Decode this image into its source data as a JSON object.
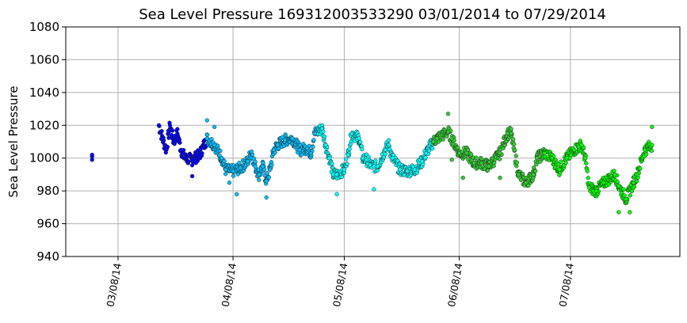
{
  "chart_data": {
    "type": "scatter",
    "title": "Sea Level Pressure 169312003533290  03/01/2014 to 07/29/2014",
    "xlabel": "",
    "ylabel": "Sea Level Pressure",
    "ylim": [
      940,
      1080
    ],
    "yticks": [
      940,
      960,
      980,
      1000,
      1020,
      1040,
      1060,
      1080
    ],
    "x_unit": "days since 03/01/2014",
    "xlim": [
      -7.1,
      158.5
    ],
    "xticks": [
      {
        "day": 7,
        "label": "03/08/14"
      },
      {
        "day": 38,
        "label": "04/08/14"
      },
      {
        "day": 68,
        "label": "05/08/14"
      },
      {
        "day": 99,
        "label": "06/08/14"
      },
      {
        "day": 129,
        "label": "07/08/14"
      }
    ],
    "grid": true,
    "legend": "none",
    "month_colors": [
      {
        "month": "March",
        "from_day": 0,
        "color": "#0000ff"
      },
      {
        "month": "April",
        "from_day": 31,
        "color": "#00bfff"
      },
      {
        "month": "May",
        "from_day": 61,
        "color": "#00ffff"
      },
      {
        "month": "June",
        "from_day": 92,
        "color": "#32cd32"
      },
      {
        "month": "July",
        "from_day": 122,
        "color": "#00ff00"
      }
    ],
    "isolated_points": [
      [
        0,
        999
      ],
      [
        0,
        1001
      ],
      [
        0,
        1002
      ]
    ],
    "series": [
      [
        18,
        1020
      ],
      [
        19,
        1012
      ],
      [
        20,
        1005
      ],
      [
        21,
        1020
      ],
      [
        22,
        1010
      ],
      [
        23,
        1015
      ],
      [
        24,
        1005
      ],
      [
        25,
        1000
      ],
      [
        27,
        999
      ],
      [
        29,
        1002
      ],
      [
        31,
        1012
      ],
      [
        33,
        1008
      ],
      [
        35,
        1000
      ],
      [
        36,
        993
      ],
      [
        38,
        992
      ],
      [
        40,
        994
      ],
      [
        42,
        998
      ],
      [
        43,
        1004
      ],
      [
        44,
        995
      ],
      [
        45,
        990
      ],
      [
        46,
        995
      ],
      [
        47,
        986
      ],
      [
        48,
        993
      ],
      [
        49,
        1005
      ],
      [
        50,
        1008
      ],
      [
        52,
        1011
      ],
      [
        54,
        1012
      ],
      [
        56,
        1005
      ],
      [
        58,
        1006
      ],
      [
        59,
        1003
      ],
      [
        60,
        1015
      ],
      [
        62,
        1018
      ],
      [
        63,
        1008
      ],
      [
        64,
        1000
      ],
      [
        65,
        990
      ],
      [
        66,
        990
      ],
      [
        68,
        993
      ],
      [
        69,
        1002
      ],
      [
        70,
        1015
      ],
      [
        72,
        1012
      ],
      [
        73,
        1000
      ],
      [
        74,
        999
      ],
      [
        75,
        996
      ],
      [
        76,
        995
      ],
      [
        77,
        995
      ],
      [
        79,
        1005
      ],
      [
        80,
        1008
      ],
      [
        81,
        1000
      ],
      [
        83,
        993
      ],
      [
        85,
        992
      ],
      [
        87,
        993
      ],
      [
        89,
        998
      ],
      [
        90,
        1003
      ],
      [
        92,
        1010
      ],
      [
        93,
        1012
      ],
      [
        96,
        1016
      ],
      [
        97,
        1012
      ],
      [
        99,
        1003
      ],
      [
        101,
        1003
      ],
      [
        103,
        997
      ],
      [
        105,
        997
      ],
      [
        107,
        995
      ],
      [
        110,
        1003
      ],
      [
        112,
        1015
      ],
      [
        113,
        1015
      ],
      [
        115,
        990
      ],
      [
        117,
        985
      ],
      [
        119,
        990
      ],
      [
        120,
        1000
      ],
      [
        122,
        1003
      ],
      [
        124,
        1000
      ],
      [
        126,
        993
      ],
      [
        128,
        1000
      ],
      [
        130,
        1005
      ],
      [
        132,
        1008
      ],
      [
        133,
        1000
      ],
      [
        134,
        982
      ],
      [
        136,
        980
      ],
      [
        138,
        985
      ],
      [
        141,
        990
      ],
      [
        142,
        983
      ],
      [
        144,
        975
      ],
      [
        146,
        985
      ],
      [
        147,
        990
      ],
      [
        149,
        1005
      ],
      [
        151,
        1008
      ]
    ],
    "outliers": [
      [
        27,
        989
      ],
      [
        31,
        1023
      ],
      [
        33,
        1019
      ],
      [
        37,
        985
      ],
      [
        39,
        978
      ],
      [
        47,
        976
      ],
      [
        66,
        978
      ],
      [
        76,
        981
      ],
      [
        96,
        1027
      ],
      [
        97,
        999
      ],
      [
        100,
        988
      ],
      [
        110,
        988
      ],
      [
        142,
        967
      ],
      [
        145,
        967
      ],
      [
        151,
        1019
      ]
    ]
  }
}
